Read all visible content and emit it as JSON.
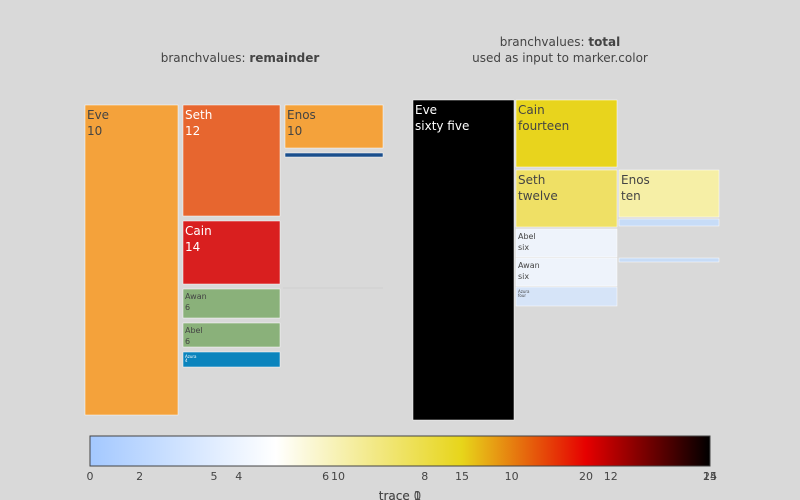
{
  "chart_data": [
    {
      "type": "icicle",
      "title_prefix": "branchvalues: ",
      "title_bold": "remainder",
      "subtitle": "",
      "branchvalues": "remainder",
      "nodes": [
        {
          "id": "Eve",
          "label": "Eve",
          "value_text": "10",
          "value": 10,
          "color": "#f4a23b"
        },
        {
          "id": "Seth",
          "label": "Seth",
          "value_text": "12",
          "value": 12,
          "color": "#e7662f"
        },
        {
          "id": "Enos",
          "label": "Enos",
          "value_text": "10",
          "value": 10,
          "color": "#f4a23b"
        },
        {
          "id": "Noam",
          "label": "",
          "value_text": "",
          "value": 2,
          "color": "#1a4e8c"
        },
        {
          "id": "Cain",
          "label": "Cain",
          "value_text": "14",
          "value": 14,
          "color": "#d91f1f"
        },
        {
          "id": "Awan",
          "label": "Awan",
          "value_text": "6",
          "value": 6,
          "color": "#8ab17a"
        },
        {
          "id": "Abel",
          "label": "Abel",
          "value_text": "6",
          "value": 6,
          "color": "#8ab17a"
        },
        {
          "id": "Azura",
          "label": "Azura",
          "value_text": "4",
          "value": 4,
          "color": "#0b84bd"
        }
      ]
    },
    {
      "type": "icicle",
      "title_prefix": "branchvalues: ",
      "title_bold": "total",
      "subtitle": "used as input to marker.color",
      "branchvalues": "total",
      "nodes": [
        {
          "id": "Eve",
          "label": "Eve",
          "value_text": "sixty five",
          "value": 65,
          "color": "#000000"
        },
        {
          "id": "Cain",
          "label": "Cain",
          "value_text": "fourteen",
          "value": 14,
          "color": "#e8d41d"
        },
        {
          "id": "Seth",
          "label": "Seth",
          "value_text": "twelve",
          "value": 12,
          "color": "#efe065"
        },
        {
          "id": "Enos",
          "label": "Enos",
          "value_text": "ten",
          "value": 10,
          "color": "#f6efa6"
        },
        {
          "id": "Noam",
          "label": "",
          "value_text": "",
          "value": 2,
          "color": "#c7dcf7"
        },
        {
          "id": "Enos2",
          "label": "",
          "value_text": "",
          "value": 2,
          "color": "#c7dcf7"
        },
        {
          "id": "Abel",
          "label": "Abel",
          "value_text": "six",
          "value": 6,
          "color": "#eef3fb"
        },
        {
          "id": "Awan",
          "label": "Awan",
          "value_text": "six",
          "value": 6,
          "color": "#eef3fb"
        },
        {
          "id": "Azura",
          "label": "Azura",
          "value_text": "four",
          "value": 4,
          "color": "#d6e4f8"
        }
      ]
    }
  ],
  "colorbar": {
    "title": "trace 1",
    "title_overlap": "trace 0",
    "range": [
      0,
      25
    ],
    "colorscale": [
      {
        "stop": 0.0,
        "color": "#a3c8ff"
      },
      {
        "stop": 0.3,
        "color": "#ffffff"
      },
      {
        "stop": 0.6,
        "color": "#e7d51a"
      },
      {
        "stop": 0.8,
        "color": "#e60000"
      },
      {
        "stop": 1.0,
        "color": "#000000"
      }
    ],
    "ticks_a": [
      {
        "label": "0",
        "value": 0
      },
      {
        "label": "5",
        "value": 5
      },
      {
        "label": "10",
        "value": 10
      },
      {
        "label": "15",
        "value": 15
      },
      {
        "label": "20",
        "value": 20
      },
      {
        "label": "25",
        "value": 25
      }
    ],
    "ticks_b": [
      {
        "label": "2",
        "value": 2
      },
      {
        "label": "4",
        "value": 6
      },
      {
        "label": "6",
        "value": 9.5
      },
      {
        "label": "8",
        "value": 13.5
      },
      {
        "label": "10",
        "value": 17
      },
      {
        "label": "12",
        "value": 21
      },
      {
        "label": "14",
        "value": 25
      }
    ]
  }
}
